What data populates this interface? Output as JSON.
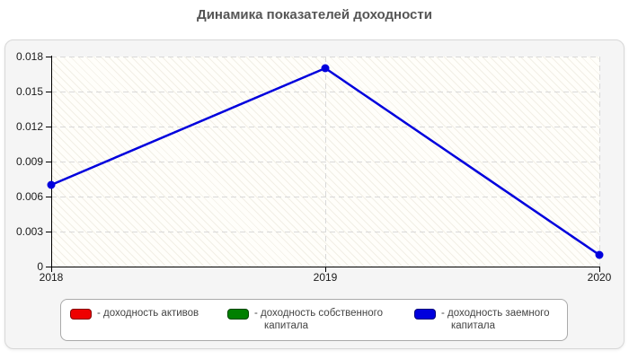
{
  "chart_data": {
    "type": "line",
    "title": "Динамика показателей доходности",
    "categories": [
      "2018",
      "2019",
      "2020"
    ],
    "ylim": [
      0,
      0.018
    ],
    "yticks": [
      0,
      0.003,
      0.006,
      0.009,
      0.012,
      0.015,
      0.018
    ],
    "ytick_labels": [
      "0",
      "0.003",
      "0.006",
      "0.009",
      "0.012",
      "0.015",
      "0.018"
    ],
    "grid": true,
    "grid_style": "dashed",
    "legend_position": "bottom",
    "series": [
      {
        "name": "доходность активов",
        "color": "#ee0000",
        "values": [],
        "visible_on_plot": false
      },
      {
        "name": "доходность собственного капитала",
        "color": "#008000",
        "values": [],
        "visible_on_plot": false
      },
      {
        "name": "доходность заемного капитала",
        "color": "#0000dd",
        "values": [
          0.007,
          0.017,
          0.001
        ],
        "visible_on_plot": true
      }
    ]
  },
  "legend": {
    "items": [
      {
        "color": "#ee0000",
        "label_lines": [
          "- доходность активов"
        ]
      },
      {
        "color": "#008000",
        "label_lines": [
          "- доходность собственного",
          "капитала"
        ]
      },
      {
        "color": "#0000dd",
        "label_lines": [
          "- доходность заемного",
          "капитала"
        ]
      }
    ]
  },
  "colors": {
    "axis": "#000000",
    "gridline": "#d9d9d9",
    "title_text": "#555555",
    "tick_text": "#1a1a1a",
    "legend_text": "#444444"
  }
}
